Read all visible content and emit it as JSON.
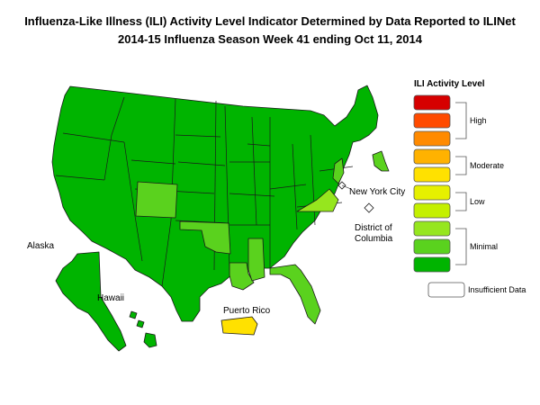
{
  "title_line1": "Influenza-Like Illness (ILI) Activity Level Indicator Determined by Data Reported to ILINet",
  "title_line2": "2014-15  Influenza Season Week  41 ending Oct 11, 2014",
  "map_labels": {
    "alaska": "Alaska",
    "hawaii": "Hawaii",
    "puerto_rico": "Puerto Rico",
    "new_york_city": "New York City",
    "dc_line1": "District of",
    "dc_line2": "Columbia"
  },
  "legend": {
    "title": "ILI Activity Level",
    "swatches": [
      {
        "level": 10,
        "color": "#d60000"
      },
      {
        "level": 9,
        "color": "#ff4b00"
      },
      {
        "level": 8,
        "color": "#ff8a00"
      },
      {
        "level": 7,
        "color": "#ffb200"
      },
      {
        "level": 6,
        "color": "#ffe100"
      },
      {
        "level": 5,
        "color": "#e6f000"
      },
      {
        "level": 4,
        "color": "#c4f000"
      },
      {
        "level": 3,
        "color": "#96e61e"
      },
      {
        "level": 2,
        "color": "#5ad21e"
      },
      {
        "level": 1,
        "color": "#00b400"
      }
    ],
    "groups": [
      {
        "label": "High"
      },
      {
        "label": "Moderate"
      },
      {
        "label": "Low"
      },
      {
        "label": "Minimal"
      }
    ],
    "insufficient": {
      "label": "Insufficient Data",
      "color": "#ffffff"
    }
  },
  "level_colors": {
    "minimal_1": "#00b400",
    "minimal_2": "#5ad21e",
    "minimal_3": "#96e61e",
    "moderate_6": "#ffe100",
    "moderate_7": "#ffb200"
  }
}
